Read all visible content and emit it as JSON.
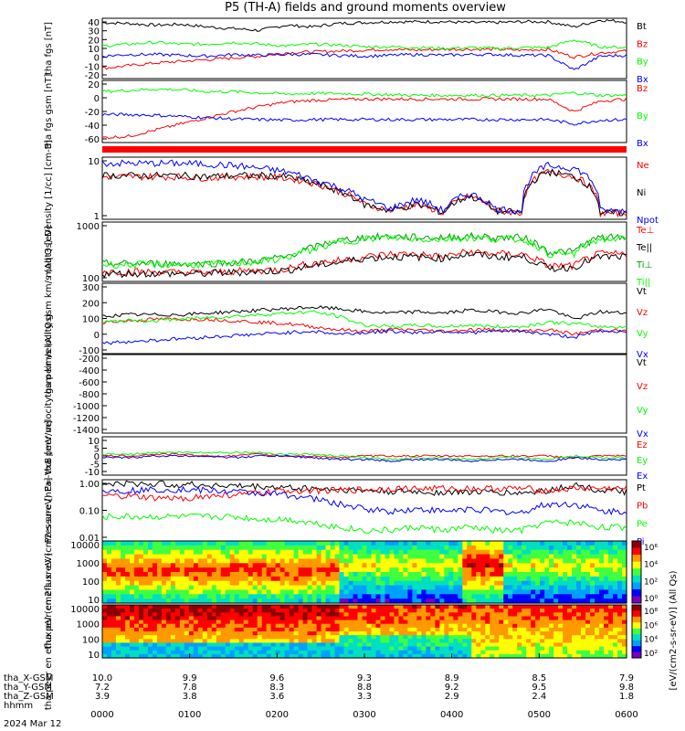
{
  "title": "P5 (TH-A) fields and ground moments overview",
  "time_ticks": [
    "0000",
    "0100",
    "0200",
    "0300",
    "0400",
    "0500",
    "0600"
  ],
  "footer": {
    "rows": [
      {
        "label": "tha_X-GSM",
        "values": [
          "10.0",
          "9.9",
          "9.6",
          "9.3",
          "8.9",
          "8.5",
          "7.9"
        ]
      },
      {
        "label": "tha_Y-GSM",
        "values": [
          "7.2",
          "7.8",
          "8.3",
          "8.8",
          "9.2",
          "9.5",
          "9.8"
        ]
      },
      {
        "label": "tha_Z-GSM",
        "values": [
          "3.9",
          "3.8",
          "3.6",
          "3.3",
          "2.9",
          "2.4",
          "1.8"
        ]
      },
      {
        "label": "hhmm",
        "values": []
      }
    ],
    "date": "2024 Mar 12"
  },
  "colorbar": {
    "label": "[eV/(cm2-s-sr-eV)] (All Qs)",
    "ticks": [
      "10⁶",
      "10⁴",
      "10²",
      "10⁰"
    ],
    "ticks2": [
      "10⁸",
      "10⁶",
      "10⁴",
      "10²"
    ],
    "colors": [
      "#7a00c0",
      "#0000ff",
      "#00a0ff",
      "#00e0c0",
      "#40ff40",
      "#ffff00",
      "#ff9900",
      "#ff0000",
      "#8b0000"
    ]
  },
  "colors": {
    "black": "#000000",
    "red": "#ff0000",
    "green": "#00ff00",
    "blue": "#0000ff"
  },
  "chart_data": [
    {
      "type": "line",
      "ylabel": "tha fgs [nT]",
      "ylim": [
        -30,
        40
      ],
      "ticks": [
        "40",
        "30",
        "20",
        "10",
        "0",
        "-10",
        "-20"
      ],
      "series": [
        {
          "name": "Bt",
          "color": "#000000",
          "values": [
            35,
            34,
            32,
            33,
            30,
            28,
            26,
            32,
            30,
            34,
            35,
            36,
            36,
            36,
            35,
            35,
            36,
            36,
            30,
            38,
            36
          ]
        },
        {
          "name": "Bz",
          "color": "#ff0000",
          "values": [
            -18,
            -15,
            -12,
            -10,
            -8,
            -6,
            -4,
            0,
            1,
            2,
            3,
            4,
            3,
            4,
            4,
            4,
            3,
            4,
            -5,
            0,
            2
          ]
        },
        {
          "name": "By",
          "color": "#00ff00",
          "values": [
            8,
            10,
            12,
            10,
            10,
            12,
            10,
            8,
            10,
            9,
            7,
            7,
            6,
            5,
            6,
            5,
            6,
            6,
            15,
            7,
            6
          ]
        },
        {
          "name": "Bx",
          "color": "#0000ff",
          "values": [
            -4,
            -2,
            -2,
            -3,
            -4,
            -2,
            -3,
            -2,
            -2,
            -3,
            -4,
            -3,
            -2,
            -3,
            -2,
            -2,
            -3,
            -3,
            -20,
            -4,
            -3
          ]
        }
      ]
    },
    {
      "type": "line",
      "ylabel": "tha fgs gsm [nT]",
      "ylim": [
        -70,
        30
      ],
      "ticks": [
        "20",
        "0",
        "-20",
        "-40",
        "-60"
      ],
      "series": [
        {
          "name": "Bz",
          "color": "#ff0000",
          "values": [
            -62,
            -60,
            -50,
            -40,
            -30,
            -20,
            -12,
            -5,
            -2,
            -1,
            0,
            0,
            0,
            0,
            0,
            0,
            0,
            0,
            -20,
            -3,
            0
          ]
        },
        {
          "name": "By",
          "color": "#00ff00",
          "values": [
            12,
            14,
            16,
            15,
            12,
            12,
            10,
            8,
            9,
            9,
            8,
            7,
            6,
            6,
            6,
            6,
            6,
            6,
            10,
            6,
            6
          ]
        },
        {
          "name": "Bx",
          "color": "#0000ff",
          "values": [
            -25,
            -25,
            -26,
            -28,
            -30,
            -32,
            -33,
            -34,
            -33,
            -33,
            -33,
            -33,
            -33,
            -33,
            -33,
            -33,
            -33,
            -33,
            -40,
            -34,
            -33
          ]
        }
      ]
    },
    {
      "type": "line",
      "log": true,
      "ylabel": "Density [1/cc] [cm-3]",
      "ylim": [
        0.3,
        50
      ],
      "ticks": [
        "10",
        "1"
      ],
      "series": [
        {
          "name": "Ne",
          "color": "#ff0000",
          "values": [
            10,
            10,
            10,
            10,
            9,
            10,
            10,
            9,
            6,
            3,
            1,
            0.6,
            1,
            0.5,
            2,
            0.6,
            0.5,
            15,
            10,
            0.5,
            0.5
          ]
        },
        {
          "name": "Ni",
          "color": "#000000",
          "values": [
            11,
            11,
            11,
            11,
            10,
            11,
            11,
            10,
            6,
            3,
            1,
            0.6,
            1,
            0.5,
            2,
            0.6,
            0.5,
            15,
            10,
            0.5,
            0.5
          ]
        },
        {
          "name": "Npot",
          "color": "#0000ff",
          "values": [
            30,
            30,
            30,
            30,
            28,
            25,
            20,
            15,
            8,
            4,
            1.5,
            0.7,
            1.5,
            0.6,
            2.5,
            0.7,
            0.6,
            25,
            20,
            0.6,
            0.6
          ]
        }
      ]
    },
    {
      "type": "line",
      "log": true,
      "ylabel": "moqt3 [eV]",
      "ylim": [
        30,
        3000
      ],
      "ticks": [
        "1000",
        "100"
      ],
      "series": [
        {
          "name": "Te⊥",
          "color": "#ff0000",
          "values": [
            65,
            65,
            62,
            60,
            60,
            65,
            70,
            80,
            120,
            150,
            200,
            250,
            250,
            200,
            300,
            250,
            250,
            100,
            100,
            250,
            250
          ]
        },
        {
          "name": "Te||",
          "color": "#000000",
          "values": [
            55,
            55,
            55,
            55,
            55,
            60,
            65,
            70,
            100,
            130,
            180,
            200,
            200,
            180,
            250,
            200,
            200,
            80,
            90,
            200,
            200
          ]
        },
        {
          "name": "Ti⊥",
          "color": "#00a000",
          "values": [
            120,
            120,
            120,
            120,
            120,
            130,
            150,
            200,
            400,
            700,
            900,
            1000,
            900,
            900,
            1000,
            900,
            900,
            300,
            300,
            900,
            900
          ]
        },
        {
          "name": "Ti||",
          "color": "#00ff00",
          "values": [
            110,
            110,
            110,
            110,
            110,
            120,
            140,
            180,
            350,
            600,
            800,
            900,
            800,
            800,
            900,
            800,
            800,
            250,
            250,
            800,
            800
          ]
        }
      ]
    },
    {
      "type": "line",
      "ylabel": "tha peir velocity gsm km/s (All Qs)",
      "ylim": [
        -150,
        320
      ],
      "ticks": [
        "300",
        "200",
        "100",
        "0",
        "-100"
      ],
      "series": [
        {
          "name": "Vt",
          "color": "#000000",
          "values": [
            100,
            110,
            110,
            110,
            120,
            130,
            140,
            150,
            160,
            150,
            130,
            120,
            130,
            120,
            140,
            130,
            120,
            150,
            80,
            130,
            120
          ]
        },
        {
          "name": "Vz",
          "color": "#ff0000",
          "values": [
            60,
            70,
            80,
            80,
            80,
            70,
            60,
            50,
            30,
            10,
            0,
            10,
            10,
            0,
            10,
            10,
            0,
            10,
            -20,
            10,
            0
          ]
        },
        {
          "name": "Vy",
          "color": "#00ff00",
          "values": [
            60,
            70,
            70,
            80,
            90,
            100,
            110,
            120,
            130,
            100,
            40,
            30,
            40,
            30,
            40,
            30,
            30,
            60,
            50,
            30,
            30
          ]
        },
        {
          "name": "Vx",
          "color": "#0000ff",
          "values": [
            -80,
            -70,
            -60,
            -50,
            -40,
            -30,
            -20,
            -10,
            0,
            -20,
            -10,
            0,
            -10,
            0,
            -10,
            0,
            0,
            -20,
            -40,
            0,
            0
          ]
        }
      ]
    },
    {
      "type": "line",
      "ylabel": "tha peer velocity gsm km/s (All Qs)",
      "ylim": [
        -1450,
        80
      ],
      "ticks": [
        "-200",
        "-400",
        "-600",
        "-800",
        "-1000",
        "-1200",
        "-1400"
      ],
      "series": [
        {
          "name": "Vt",
          "color": "#000000",
          "values": []
        },
        {
          "name": "Vz",
          "color": "#ff0000",
          "values": []
        },
        {
          "name": "Vy",
          "color": "#00ff00",
          "values": []
        },
        {
          "name": "Vx",
          "color": "#0000ff",
          "values": []
        }
      ]
    },
    {
      "type": "line",
      "ylabel": "E=-VxB [mV/m]",
      "ylim": [
        -11,
        11
      ],
      "ticks": [
        "10",
        "5",
        "0",
        "-5",
        "-10"
      ],
      "series": [
        {
          "name": "Ez",
          "color": "#ff0000",
          "values": [
            0,
            0,
            1,
            1,
            0,
            0,
            1,
            0,
            0,
            -1,
            0,
            0,
            0,
            0,
            0,
            0,
            0,
            0,
            -1,
            0,
            0
          ]
        },
        {
          "name": "Ey",
          "color": "#00ff00",
          "values": [
            1,
            1,
            2,
            2,
            2,
            2,
            2,
            1,
            1,
            0,
            -1,
            -2,
            -1,
            -1,
            -2,
            -1,
            -1,
            -2,
            0,
            -1,
            -1
          ]
        },
        {
          "name": "Ex",
          "color": "#0000ff",
          "values": [
            -1,
            -1,
            0,
            0,
            0,
            -1,
            0,
            0,
            -1,
            -2,
            -2,
            -3,
            -2,
            -2,
            -3,
            -2,
            -2,
            -3,
            -1,
            -2,
            -2
          ]
        }
      ]
    },
    {
      "type": "line",
      "log": true,
      "ylabel": "Pressure [nPa]",
      "ylim": [
        0.006,
        1.3
      ],
      "ticks": [
        "1.00",
        "0.10",
        "0.01"
      ],
      "series": [
        {
          "name": "Pt",
          "color": "#000000",
          "values": [
            0.9,
            0.9,
            0.9,
            0.85,
            0.8,
            0.75,
            0.7,
            0.65,
            0.6,
            0.55,
            0.5,
            0.45,
            0.45,
            0.42,
            0.45,
            0.42,
            0.4,
            0.5,
            0.8,
            0.5,
            0.45
          ]
        },
        {
          "name": "Pb",
          "color": "#ff0000",
          "values": [
            0.3,
            0.3,
            0.25,
            0.25,
            0.3,
            0.35,
            0.4,
            0.5,
            0.5,
            0.5,
            0.55,
            0.6,
            0.6,
            0.6,
            0.6,
            0.6,
            0.6,
            0.5,
            0.6,
            0.6,
            0.6
          ]
        },
        {
          "name": "Pe",
          "color": "#00ff00",
          "values": [
            0.05,
            0.05,
            0.05,
            0.05,
            0.05,
            0.05,
            0.04,
            0.04,
            0.03,
            0.02,
            0.015,
            0.015,
            0.02,
            0.015,
            0.02,
            0.015,
            0.015,
            0.03,
            0.03,
            0.02,
            0.02
          ]
        },
        {
          "name": "Pi",
          "color": "#0000ff",
          "values": [
            0.5,
            0.5,
            0.55,
            0.55,
            0.5,
            0.45,
            0.4,
            0.35,
            0.25,
            0.15,
            0.1,
            0.08,
            0.1,
            0.08,
            0.1,
            0.08,
            0.07,
            0.15,
            0.15,
            0.08,
            0.08
          ]
        }
      ]
    },
    {
      "type": "heatmap",
      "ylabel": "tha peir en eflux eV (cm2-s-sr-eV)",
      "ticks": [
        "10000",
        "1000",
        "100",
        "10"
      ]
    },
    {
      "type": "heatmap",
      "ylabel": "tha peer en eflux eV (cm2-s-sr-eV)",
      "ticks": [
        "10000",
        "1000",
        "100",
        "10"
      ]
    }
  ]
}
